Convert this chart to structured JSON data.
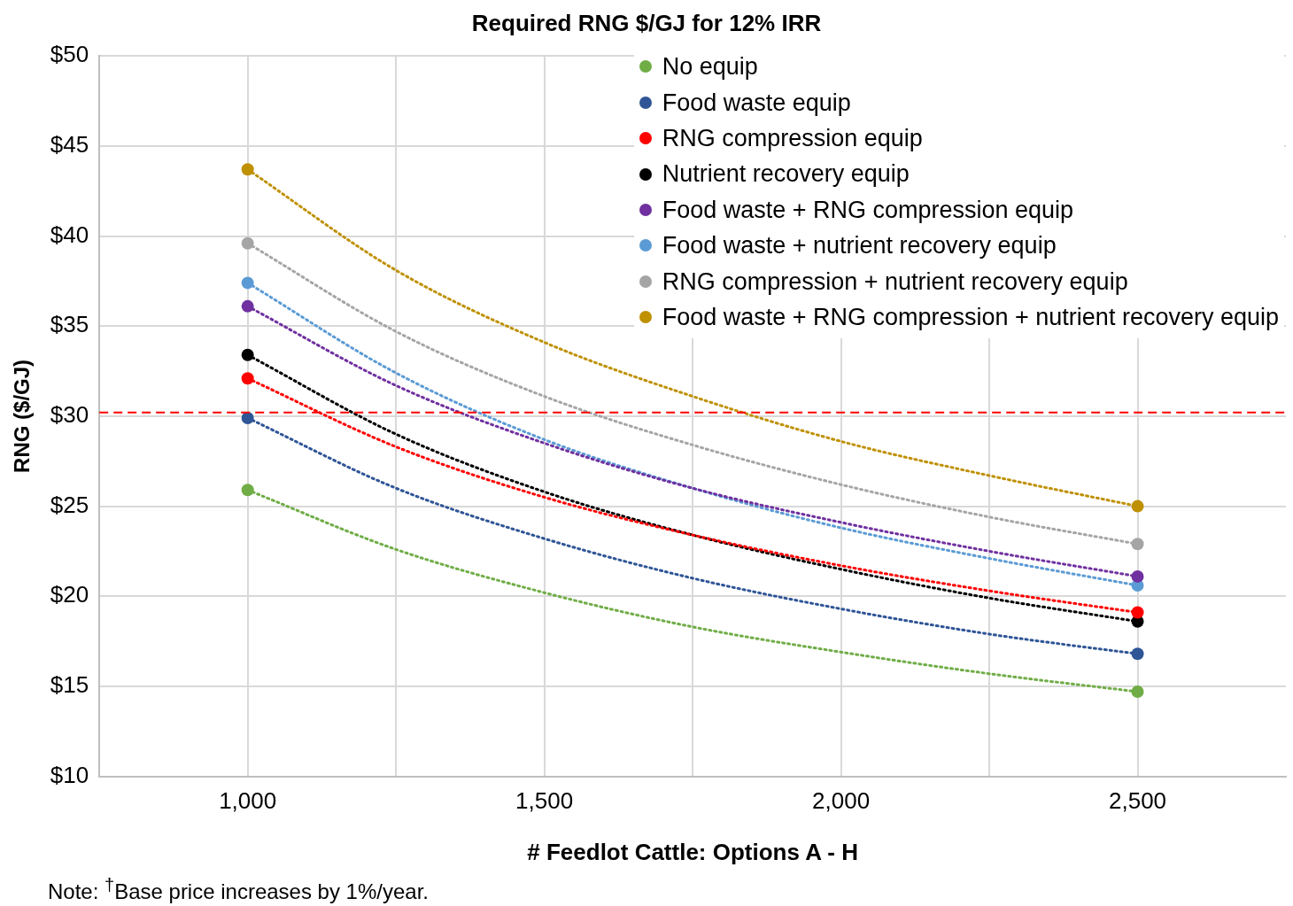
{
  "chart_data": {
    "type": "scatter",
    "title": "Required RNG $/GJ for 12% IRR",
    "xlabel": "# Feedlot Cattle: Options A - H",
    "ylabel": "RNG ($/GJ)",
    "annotations": [
      "Note: $^{†}$Base price increases by 1%/year."
    ],
    "xlim": [
      750,
      2750
    ],
    "xticks": [
      {
        "value": 1000,
        "label": "1,000"
      },
      {
        "value": 1250,
        "label": null
      },
      {
        "value": 1500,
        "label": "1,500"
      },
      {
        "value": 1750,
        "label": null
      },
      {
        "value": 2000,
        "label": "2,000"
      },
      {
        "value": 2250,
        "label": null
      },
      {
        "value": 2500,
        "label": "2,500"
      }
    ],
    "ylim": [
      10,
      50
    ],
    "yticks": [
      {
        "value": 10,
        "label": "$10"
      },
      {
        "value": 15,
        "label": "$15"
      },
      {
        "value": 20,
        "label": "$20"
      },
      {
        "value": 25,
        "label": "$25"
      },
      {
        "value": 30,
        "label": "$30"
      },
      {
        "value": 35,
        "label": "$35"
      },
      {
        "value": 40,
        "label": "$40"
      },
      {
        "value": 45,
        "label": "$45"
      },
      {
        "value": 50,
        "label": "$50"
      }
    ],
    "grid": true,
    "legend": "top right",
    "marker": "circle",
    "ref_lines": [
      {
        "axis": "y",
        "value": 30.2,
        "color": "#ff0000",
        "line_style": "dashed"
      }
    ],
    "series": [
      {
        "name": "No equip",
        "color": "#70ad47",
        "x": [
          1000,
          2500
        ],
        "values": [
          25.9,
          14.7
        ]
      },
      {
        "name": "Food waste equip",
        "color": "#2f5597",
        "x": [
          1000,
          2500
        ],
        "values": [
          29.9,
          16.8
        ]
      },
      {
        "name": "RNG compression equip",
        "color": "#ff0000",
        "x": [
          1000,
          2500
        ],
        "values": [
          32.1,
          19.1
        ]
      },
      {
        "name": "Nutrient recovery equip",
        "color": "#000000",
        "x": [
          1000,
          2500
        ],
        "values": [
          33.4,
          18.6
        ]
      },
      {
        "name": "Food waste + RNG compression equip",
        "color": "#7030a0",
        "x": [
          1000,
          2500
        ],
        "values": [
          36.1,
          21.1
        ]
      },
      {
        "name": "Food waste + nutrient recovery equip",
        "color": "#5b9bd5",
        "x": [
          1000,
          2500
        ],
        "values": [
          37.4,
          20.6
        ]
      },
      {
        "name": "RNG compression + nutrient recovery equip",
        "color": "#a5a5a5",
        "x": [
          1000,
          2500
        ],
        "values": [
          39.6,
          22.9
        ]
      },
      {
        "name": "Food waste + RNG compression + nutrient recovery equip",
        "color": "#bf9000",
        "x": [
          1000,
          2500
        ],
        "values": [
          43.7,
          25.0
        ]
      },
      {
        "type": "line",
        "line_style": "dotted",
        "marker": "none",
        "color": "#70ad47",
        "x": [
          1000,
          1250,
          1500,
          1750,
          2000,
          2250,
          2500
        ],
        "values": [
          25.9,
          22.6,
          20.2,
          18.3,
          16.9,
          15.7,
          14.7
        ]
      },
      {
        "type": "line",
        "line_style": "dotted",
        "marker": "none",
        "color": "#2f5597",
        "x": [
          1000,
          1250,
          1500,
          1750,
          2000,
          2250,
          2500
        ],
        "values": [
          29.9,
          26.0,
          23.2,
          21.0,
          19.3,
          17.9,
          16.8
        ]
      },
      {
        "type": "line",
        "line_style": "dotted",
        "marker": "none",
        "color": "#ff0000",
        "x": [
          1000,
          1250,
          1500,
          1750,
          2000,
          2250,
          2500
        ],
        "values": [
          32.1,
          28.3,
          25.5,
          23.4,
          21.7,
          20.3,
          19.1
        ]
      },
      {
        "type": "line",
        "line_style": "dotted",
        "marker": "none",
        "color": "#000000",
        "x": [
          1000,
          1250,
          1500,
          1750,
          2000,
          2250,
          2500
        ],
        "values": [
          33.4,
          29.0,
          25.8,
          23.4,
          21.5,
          19.9,
          18.6
        ]
      },
      {
        "type": "line",
        "line_style": "dotted",
        "marker": "none",
        "color": "#7030a0",
        "x": [
          1000,
          1250,
          1500,
          1750,
          2000,
          2250,
          2500
        ],
        "values": [
          36.1,
          31.7,
          28.5,
          26.0,
          24.1,
          22.5,
          21.1
        ]
      },
      {
        "type": "line",
        "line_style": "dotted",
        "marker": "none",
        "color": "#5b9bd5",
        "x": [
          1000,
          1250,
          1500,
          1750,
          2000,
          2250,
          2500
        ],
        "values": [
          37.4,
          32.4,
          28.7,
          26.0,
          23.8,
          22.1,
          20.6
        ]
      },
      {
        "type": "line",
        "line_style": "dotted",
        "marker": "none",
        "color": "#a5a5a5",
        "x": [
          1000,
          1250,
          1500,
          1750,
          2000,
          2250,
          2500
        ],
        "values": [
          39.6,
          34.7,
          31.1,
          28.4,
          26.2,
          24.4,
          22.9
        ]
      },
      {
        "type": "line",
        "line_style": "dotted",
        "marker": "none",
        "color": "#bf9000",
        "x": [
          1000,
          1250,
          1500,
          1750,
          2000,
          2250,
          2500
        ],
        "values": [
          43.7,
          38.1,
          34.1,
          31.1,
          28.6,
          26.7,
          25.0
        ]
      }
    ]
  }
}
